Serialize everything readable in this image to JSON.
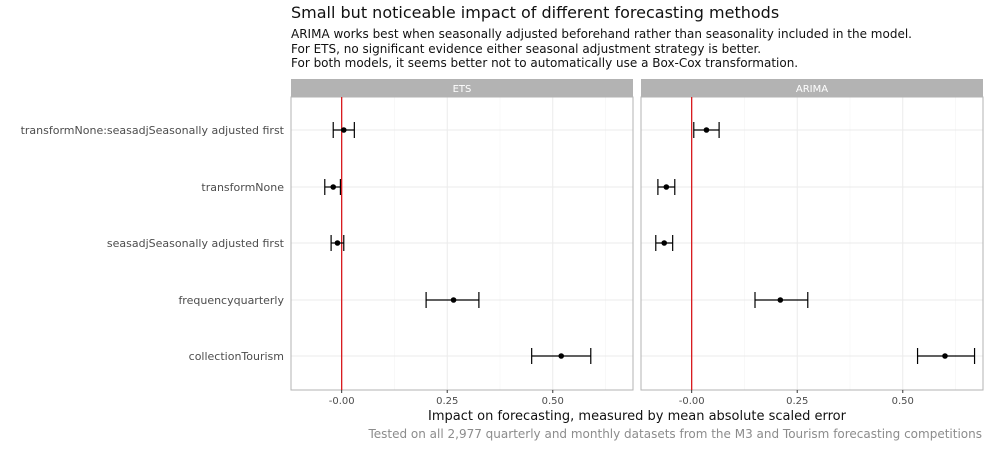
{
  "title": "Small but noticeable impact of different forecasting methods",
  "subtitle": [
    "ARIMA works best when seasonally adjusted beforehand rather than seasonality included in the model.",
    "For ETS, no significant evidence either seasonal adjustment strategy is better.",
    "For both models, it seems better not to automatically use a Box-Cox transformation."
  ],
  "caption": "Tested on all 2,977 quarterly and monthly datasets from the M3 and Tourism forecasting competitions",
  "colors": {
    "reference_line": "#d7191c",
    "strip": "#b3b3b3",
    "point": "#000000",
    "grid": "#ebebeb"
  },
  "chart_data": {
    "type": "scatter",
    "subtype": "point-range",
    "xlabel": "Impact on forecasting, measured by mean absolute scaled error",
    "ylabel": "",
    "xlim": [
      -0.12,
      0.69
    ],
    "xticks": [
      -0.0,
      0.25,
      0.5
    ],
    "xtick_labels": [
      "-0.00",
      "0.25",
      "0.50"
    ],
    "reference_line_x": 0,
    "categories": [
      "transformNone:seasadjSeasonally adjusted first",
      "transformNone",
      "seasadjSeasonally adjusted first",
      "frequencyquarterly",
      "collectionTourism"
    ],
    "facets": [
      {
        "name": "ETS",
        "estimate": [
          0.005,
          -0.02,
          -0.01,
          0.265,
          0.52
        ],
        "lower": [
          -0.02,
          -0.04,
          -0.025,
          0.2,
          0.45
        ],
        "upper": [
          0.03,
          -0.003,
          0.005,
          0.325,
          0.59
        ]
      },
      {
        "name": "ARIMA",
        "estimate": [
          0.035,
          -0.06,
          -0.065,
          0.21,
          0.6
        ],
        "lower": [
          0.005,
          -0.08,
          -0.085,
          0.15,
          0.535
        ],
        "upper": [
          0.065,
          -0.04,
          -0.045,
          0.275,
          0.67
        ]
      }
    ]
  }
}
